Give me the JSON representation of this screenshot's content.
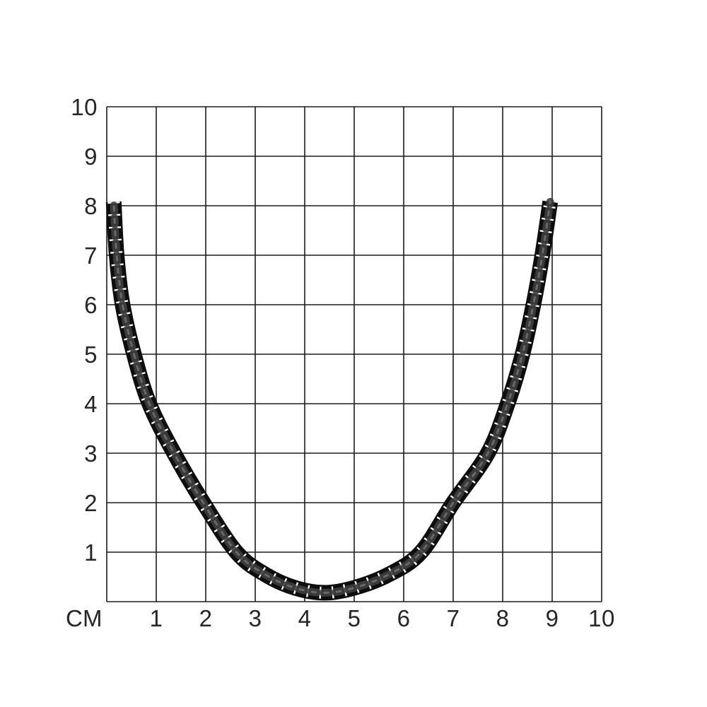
{
  "page": {
    "background": "#ffffff",
    "description_label": "necklace size guide grid"
  },
  "chart_data": {
    "type": "line",
    "title": "",
    "unit_label": "СМ",
    "x_ticks": [
      "1",
      "2",
      "3",
      "4",
      "5",
      "6",
      "7",
      "8",
      "9",
      "10"
    ],
    "y_ticks": [
      "1",
      "2",
      "3",
      "4",
      "5",
      "6",
      "7",
      "8",
      "9",
      "10"
    ],
    "x_range": [
      0,
      10
    ],
    "y_range": [
      0,
      10
    ],
    "grid": true,
    "legend": false,
    "series": [
      {
        "name": "black-necklace-cord",
        "shape": "hanging catenary, both ends cropped at y=8 cm",
        "points_cm": [
          [
            0.14,
            8.08
          ],
          [
            0.2,
            7.0
          ],
          [
            0.32,
            6.0
          ],
          [
            0.55,
            5.0
          ],
          [
            0.86,
            4.0
          ],
          [
            1.36,
            3.0
          ],
          [
            1.95,
            2.0
          ],
          [
            2.62,
            1.0
          ],
          [
            3.2,
            0.55
          ],
          [
            3.8,
            0.28
          ],
          [
            4.4,
            0.18
          ],
          [
            5.0,
            0.28
          ],
          [
            5.7,
            0.55
          ],
          [
            6.35,
            1.0
          ],
          [
            7.0,
            2.0
          ],
          [
            7.7,
            3.0
          ],
          [
            8.1,
            4.0
          ],
          [
            8.4,
            5.0
          ],
          [
            8.62,
            6.0
          ],
          [
            8.8,
            7.0
          ],
          [
            8.96,
            8.08
          ]
        ]
      }
    ]
  },
  "colors": {
    "background": "#ffffff",
    "grid_line": "#1b1b1b",
    "label": "#262626",
    "chain_black": "#0e0e0e",
    "chain_link_sheen": "#3e3e3e",
    "chain_gloss": "#6e6e6e",
    "chain_gap_white": "#ffffff"
  }
}
